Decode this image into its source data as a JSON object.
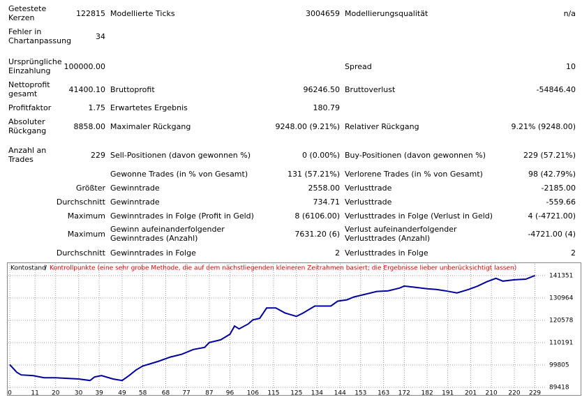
{
  "report": {
    "rows": [
      {
        "label": "Getestete Kerzen",
        "value": "122815",
        "label2": "Modellierte Ticks",
        "value2": "3004659",
        "label3": "Modellierungsqualität",
        "value3": "n/a"
      },
      {
        "label": "Fehler in Chartanpassung",
        "value": "34"
      },
      {
        "label": "Ursprüngliche Einzahlung",
        "value": "100000.00",
        "label3": "Spread",
        "value3": "10"
      },
      {
        "label": "Nettoprofit gesamt",
        "value": "41400.10",
        "label2": "Bruttoprofit",
        "value2": "96246.50",
        "label3": "Bruttoverlust",
        "value3": "-54846.40"
      },
      {
        "label": "Profitfaktor",
        "value": "1.75",
        "label2": "Erwartetes Ergebnis",
        "value2": "180.79"
      },
      {
        "label": "Absoluter Rückgang",
        "value": "8858.00",
        "label2": "Maximaler Rückgang",
        "value2": "9248.00 (9.21%)",
        "label3": "Relativer Rückgang",
        "value3": "9.21% (9248.00)"
      },
      {
        "label": "Anzahl an Trades",
        "value": "229",
        "label2": "Sell-Positionen (davon gewonnen %)",
        "value2": "0 (0.00%)",
        "label3": "Buy-Positionen (davon gewonnen %)",
        "value3": "229 (57.21%)"
      },
      {
        "label2": "Gewonne Trades (in % von Gesamt)",
        "value2": "131 (57.21%)",
        "label3": "Verlorene Trades (in % von Gesamt)",
        "value3": "98 (42.79%)"
      },
      {
        "value": "Größter",
        "label2": "Gewinntrade",
        "value2": "2558.00",
        "label3": "Verlusttrade",
        "value3": "-2185.00"
      },
      {
        "value": "Durchschnitt",
        "label2": "Gewinntrade",
        "value2": "734.71",
        "label3": "Verlusttrade",
        "value3": "-559.66"
      },
      {
        "value": "Maximum",
        "label2": "Gewinntrades in Folge (Profit in Geld)",
        "value2": "8 (6106.00)",
        "label3": "Verlusttrades in Folge (Verlust in Geld)",
        "value3": "4 (-4721.00)"
      },
      {
        "value": "Maximum",
        "label2": "Gewinn aufeinanderfolgender Gewinntrades (Anzahl)",
        "value2": "7631.20 (6)",
        "label3": "Verlust aufeinanderfolgender Verlusttrades (Anzahl)",
        "value3": "-4721.00 (4)"
      },
      {
        "value": "Durchschnitt",
        "label2": "Gewinntrades in Folge",
        "value2": "2",
        "label3": "Verlusttrades in Folge",
        "value3": "2"
      }
    ]
  },
  "chart_data": {
    "type": "line",
    "title": "Kontostand",
    "title_separator": "/",
    "subtitle": "Kontrollpunkte (eine sehr grobe Methode, die auf dem nächstliegenden kleineren Zeitrahmen basiert; die Ergebnisse lieber unberücksichtigt lassen)",
    "color": "#00009c",
    "grid": true,
    "x": [
      0,
      3,
      5,
      10,
      15,
      20,
      25,
      30,
      35,
      37,
      40,
      45,
      49,
      52,
      55,
      58,
      62,
      65,
      70,
      75,
      80,
      85,
      87,
      92,
      96,
      98,
      100,
      104,
      106,
      109,
      112,
      116,
      120,
      125,
      128,
      133,
      137,
      140,
      143,
      147,
      150,
      155,
      160,
      165,
      170,
      172,
      177,
      182,
      186,
      190,
      195,
      200,
      204,
      208,
      212,
      215,
      220,
      225,
      229
    ],
    "values": [
      100000,
      96470,
      95200,
      94900,
      93900,
      93900,
      93600,
      93300,
      92600,
      94250,
      94870,
      93300,
      92600,
      94870,
      97430,
      99350,
      100600,
      101600,
      103500,
      104800,
      107000,
      108000,
      110250,
      111500,
      114100,
      117900,
      116600,
      118900,
      120800,
      121500,
      126300,
      126300,
      124000,
      122400,
      124000,
      127200,
      127200,
      127200,
      129500,
      130100,
      131400,
      132700,
      134000,
      134300,
      135600,
      136500,
      135900,
      135250,
      134900,
      134300,
      133300,
      134900,
      136500,
      138500,
      140100,
      138800,
      139400,
      139700,
      141400
    ],
    "xlim": [
      0,
      234
    ],
    "xticks": [
      0,
      11,
      20,
      30,
      39,
      49,
      58,
      68,
      77,
      87,
      96,
      106,
      115,
      125,
      134,
      144,
      153,
      163,
      172,
      182,
      191,
      201,
      210,
      220,
      229
    ],
    "ylim": [
      89418,
      142950
    ],
    "yticks": [
      89418,
      99805,
      110191,
      120578,
      130964,
      141351
    ]
  }
}
